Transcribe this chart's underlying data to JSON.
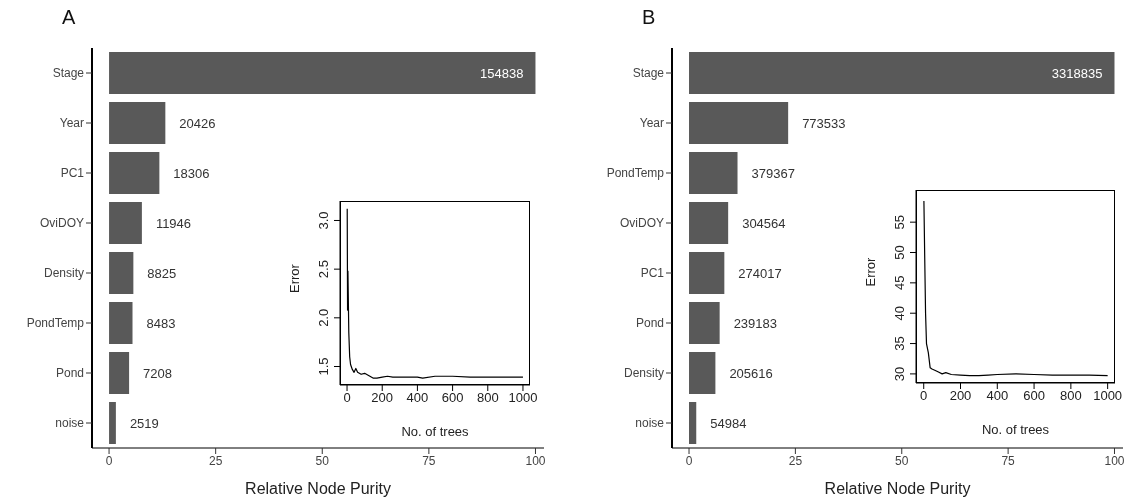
{
  "chart_data": [
    {
      "type": "bar",
      "title": "A",
      "orientation": "horizontal",
      "categories": [
        "Stage",
        "Year",
        "PC1",
        "OviDOY",
        "Density",
        "PondTemp",
        "Pond",
        "noise"
      ],
      "values": [
        100,
        13.2,
        11.8,
        7.7,
        5.7,
        5.5,
        4.7,
        1.6
      ],
      "color": "#595959",
      "xlim": [
        -4,
        102
      ],
      "xticks": [
        0,
        25,
        50,
        75,
        100
      ],
      "xlabel": "Relative Node Purity",
      "grid": false,
      "annotations": [
        {
          "text": "154838",
          "x": 100,
          "y": "Stage"
        },
        {
          "text": "20426",
          "x": 13.2,
          "y": "Year"
        },
        {
          "text": "18306",
          "x": 11.8,
          "y": "PC1"
        },
        {
          "text": "11946",
          "x": 7.7,
          "y": "OviDOY"
        },
        {
          "text": "8825",
          "x": 5.7,
          "y": "Density"
        },
        {
          "text": "8483",
          "x": 5.5,
          "y": "PondTemp"
        },
        {
          "text": "7208",
          "x": 4.7,
          "y": "Pond"
        },
        {
          "text": "2519",
          "x": 1.6,
          "y": "noise"
        }
      ]
    },
    {
      "type": "line",
      "xlabel": "No. of trees",
      "ylabel": "Error",
      "color": "#000000",
      "marker": "none",
      "x": [
        1,
        3,
        5,
        10,
        15,
        20,
        30,
        40,
        50,
        60,
        80,
        100,
        120,
        150,
        170,
        200,
        230,
        260,
        300,
        400,
        430,
        500,
        600,
        700,
        800,
        900,
        1000
      ],
      "values": [
        3.12,
        2.08,
        2.48,
        1.85,
        1.6,
        1.52,
        1.47,
        1.44,
        1.48,
        1.44,
        1.42,
        1.43,
        1.41,
        1.38,
        1.38,
        1.39,
        1.4,
        1.39,
        1.39,
        1.39,
        1.38,
        1.4,
        1.4,
        1.39,
        1.39,
        1.39,
        1.39
      ],
      "xlim": [
        -40,
        1040
      ],
      "xticks": [
        0,
        200,
        400,
        600,
        800,
        1000
      ],
      "ylim": [
        1.31,
        3.2
      ],
      "yticks": [
        1.5,
        {
          "value": 2,
          "label": "2.0"
        },
        2.5,
        {
          "value": 3,
          "label": "3.0"
        }
      ],
      "grid": false
    },
    {
      "type": "bar",
      "title": "B",
      "orientation": "horizontal",
      "categories": [
        "Stage",
        "Year",
        "PondTemp",
        "OviDOY",
        "PC1",
        "Pond",
        "Density",
        "noise"
      ],
      "values": [
        100,
        23.3,
        11.4,
        9.2,
        8.3,
        7.2,
        6.2,
        1.7
      ],
      "color": "#595959",
      "xlim": [
        -4,
        102
      ],
      "xticks": [
        0,
        25,
        50,
        75,
        100
      ],
      "xlabel": "Relative Node Purity",
      "grid": false,
      "annotations": [
        {
          "text": "3318835",
          "x": 100,
          "y": "Stage"
        },
        {
          "text": "773533",
          "x": 23.3,
          "y": "Year"
        },
        {
          "text": "379367",
          "x": 11.4,
          "y": "PondTemp"
        },
        {
          "text": "304564",
          "x": 9.2,
          "y": "OviDOY"
        },
        {
          "text": "274017",
          "x": 8.3,
          "y": "PC1"
        },
        {
          "text": "239183",
          "x": 7.2,
          "y": "Pond"
        },
        {
          "text": "205616",
          "x": 6.2,
          "y": "Density"
        },
        {
          "text": "54984",
          "x": 1.7,
          "y": "noise"
        }
      ]
    },
    {
      "type": "line",
      "xlabel": "No. of trees",
      "ylabel": "Error",
      "color": "#000000",
      "marker": "none",
      "x": [
        1,
        5,
        10,
        15,
        25,
        35,
        45,
        60,
        80,
        100,
        120,
        150,
        200,
        250,
        300,
        350,
        400,
        500,
        600,
        700,
        800,
        900,
        1000
      ],
      "values": [
        58.5,
        50,
        40,
        35,
        33.5,
        31,
        30.8,
        30.6,
        30.3,
        30,
        30.2,
        29.9,
        29.8,
        29.7,
        29.7,
        29.8,
        29.9,
        30,
        29.9,
        29.8,
        29.8,
        29.8,
        29.7
      ],
      "xlim": [
        -42,
        1040
      ],
      "xticks": [
        0,
        200,
        400,
        600,
        800,
        1000
      ],
      "ylim": [
        28.5,
        60.3
      ],
      "yticks": [
        30,
        35,
        40,
        45,
        50,
        55
      ],
      "grid": false
    }
  ]
}
